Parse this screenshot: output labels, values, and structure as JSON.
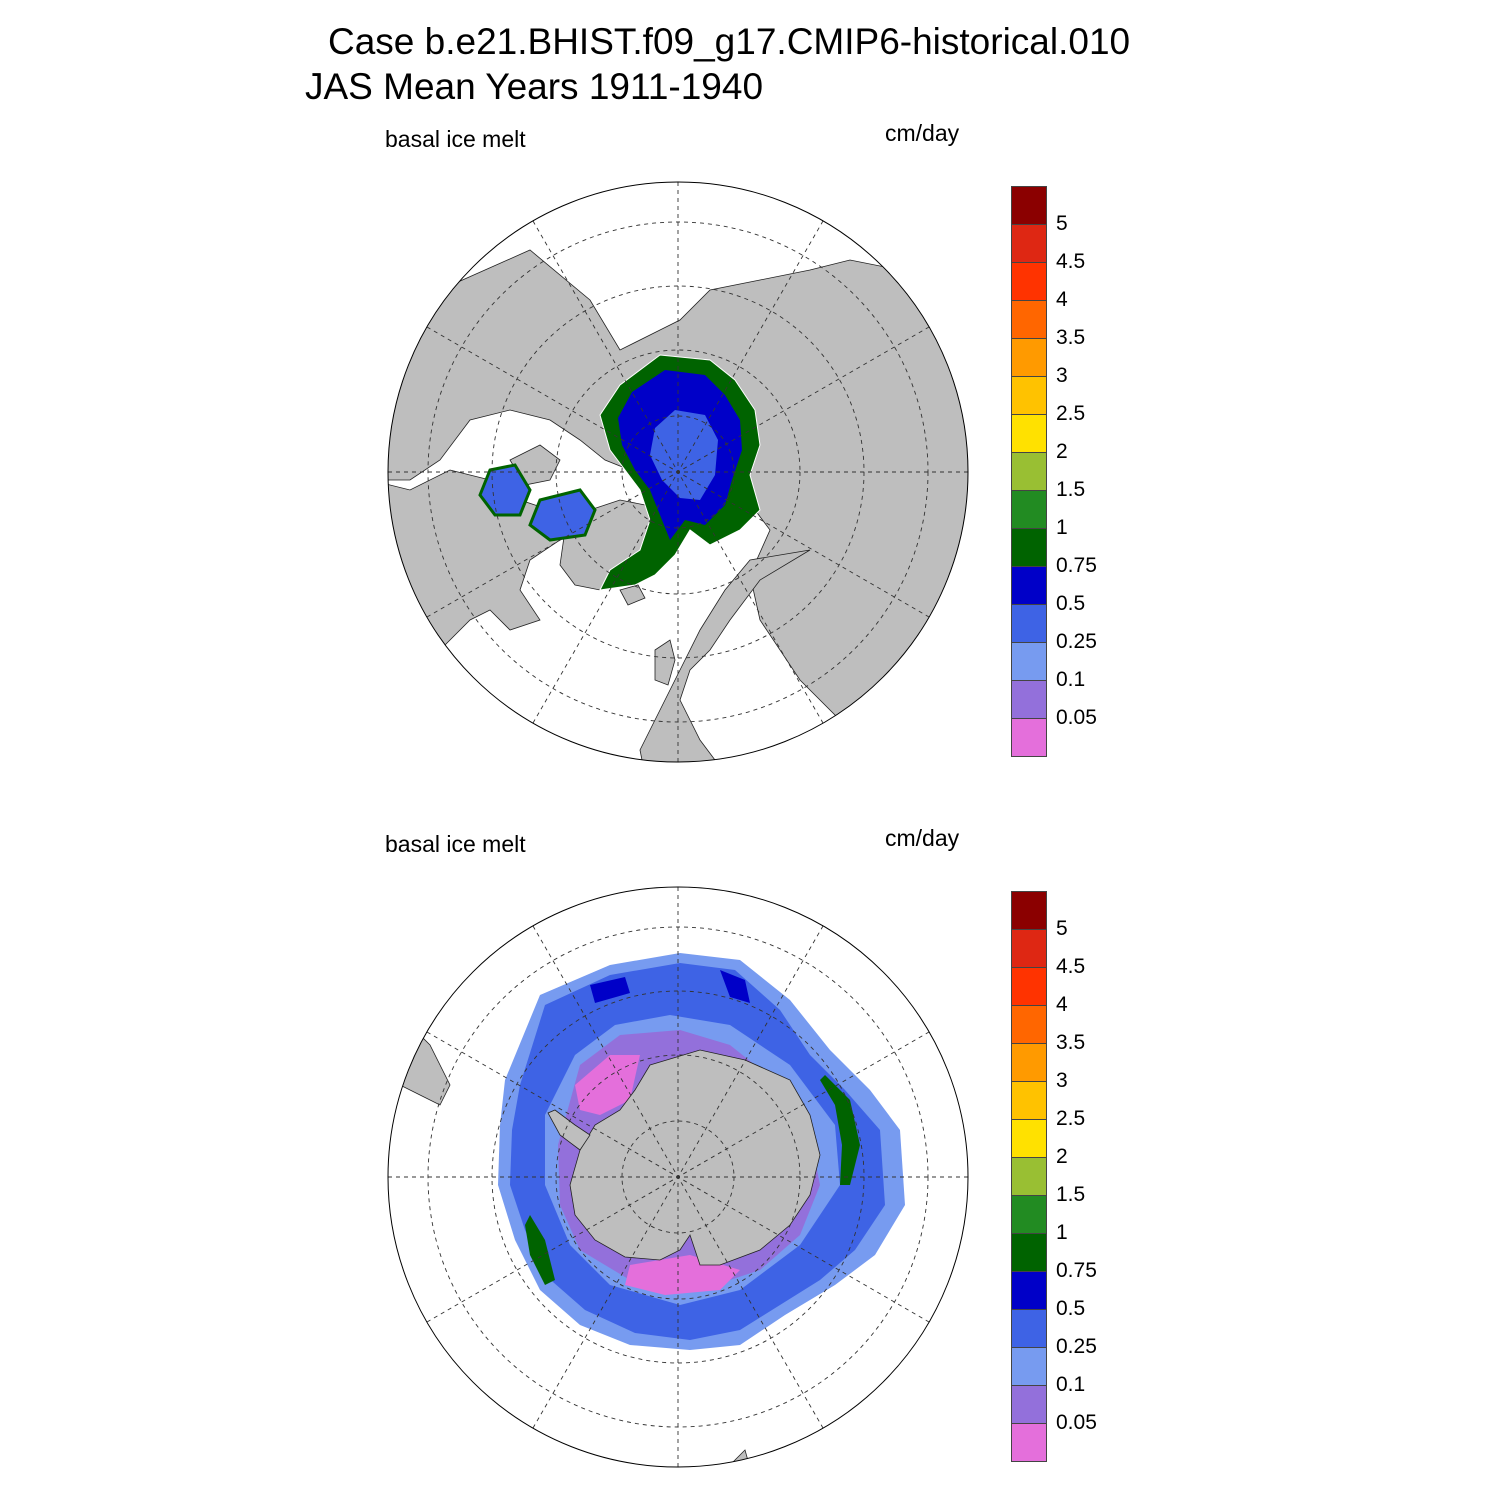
{
  "title": {
    "line1": "Case b.e21.BHIST.f09_g17.CMIP6-historical.010",
    "line2": "JAS Mean   Years 1911-1940"
  },
  "colors": {
    "land": "#bebebe",
    "ocean": "#ffffff",
    "levels": [
      "#e46fdb",
      "#9370db",
      "#779bf0",
      "#3e63e5",
      "#0000c8",
      "#006300",
      "#228b22",
      "#99bf33",
      "#ffe100",
      "#ffc200",
      "#ff9a00",
      "#ff6600",
      "#ff3300",
      "#de2713",
      "#8b0000"
    ]
  },
  "colorbar": {
    "labels": [
      "0.05",
      "0.1",
      "0.25",
      "0.5",
      "0.75",
      "1",
      "1.5",
      "2",
      "2.5",
      "3",
      "3.5",
      "4",
      "4.5",
      "5"
    ]
  },
  "panels": [
    {
      "id": "north",
      "hemisphere": "Northern Hemisphere",
      "variable": "basal ice melt",
      "units": "cm/day"
    },
    {
      "id": "south",
      "hemisphere": "Southern Hemisphere",
      "variable": "basal ice melt",
      "units": "cm/day"
    }
  ]
}
